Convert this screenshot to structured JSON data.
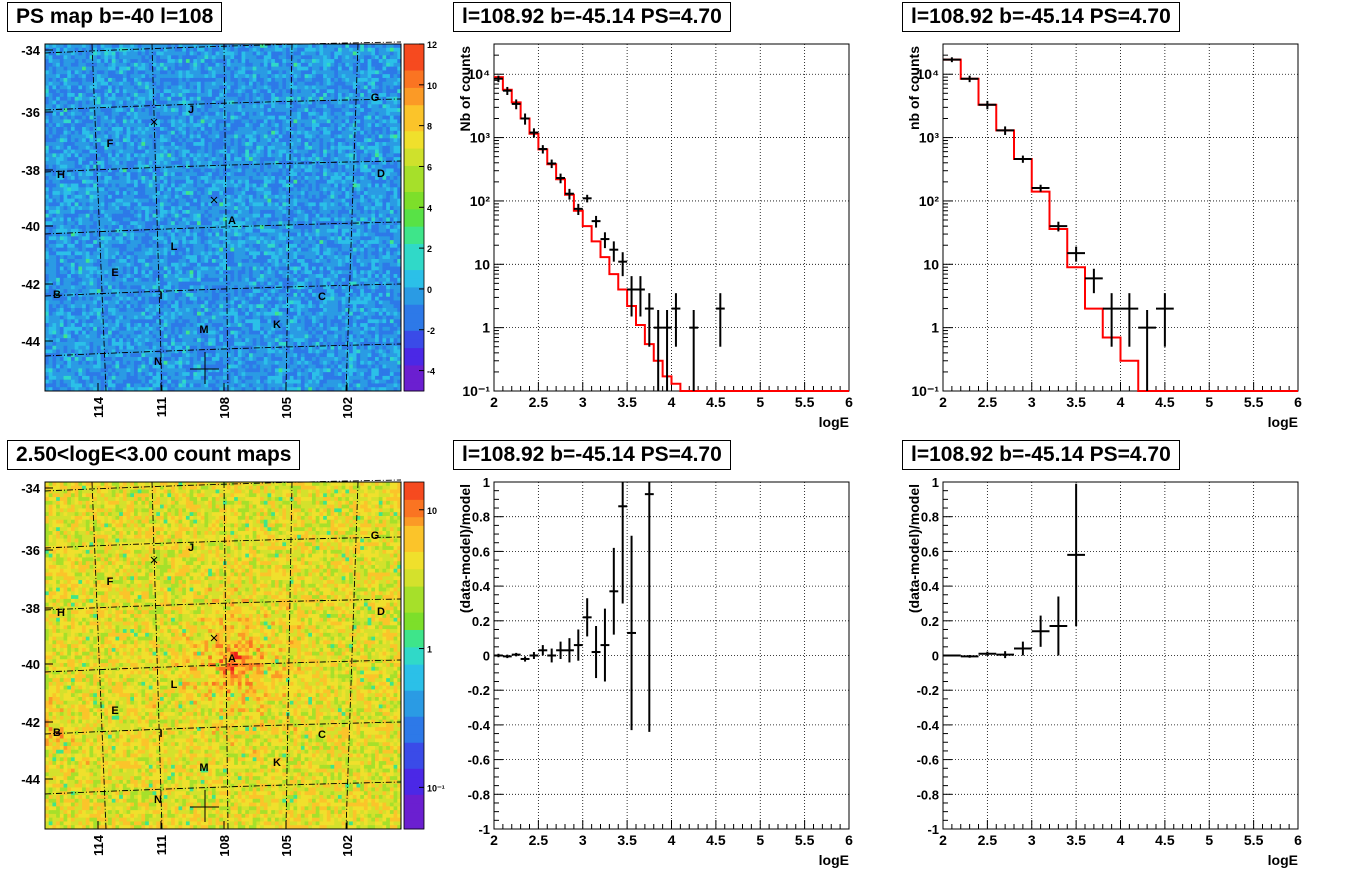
{
  "colors": {
    "data": "#000000",
    "model": "#ff0000",
    "grid": "#000000"
  },
  "maps": [
    {
      "title": "PS map b=-40 l=108",
      "kind": "psmap",
      "yticks": [
        "-34",
        "-36",
        "-38",
        "-40",
        "-42",
        "-44"
      ],
      "xticks": [
        "114",
        "111",
        "108",
        "105",
        "102"
      ],
      "colorbar_ticks": [
        "12",
        "10",
        "8",
        "6",
        "4",
        "2",
        "0",
        "-2",
        "-4"
      ],
      "colorbar_range": [
        -5,
        12
      ],
      "sources": [
        "A",
        "B",
        "C",
        "D",
        "E",
        "F",
        "G",
        "H",
        "I",
        "J",
        "K",
        "L",
        "M",
        "N"
      ]
    },
    {
      "title": "2.50<logE<3.00 count maps",
      "kind": "countmap",
      "yticks": [
        "-34",
        "-36",
        "-38",
        "-40",
        "-42",
        "-44"
      ],
      "xticks": [
        "114",
        "111",
        "108",
        "105",
        "102"
      ],
      "colorbar_ticks": [
        "10",
        "1",
        "10⁻¹"
      ],
      "colorbar_scale": "log",
      "sources": [
        "A",
        "B",
        "C",
        "D",
        "E",
        "F",
        "G",
        "H",
        "I",
        "J",
        "K",
        "L",
        "M",
        "N"
      ]
    }
  ],
  "chart_data": [
    {
      "type": "line",
      "title": "l=108.92 b=-45.14 PS=4.70",
      "xlabel": "logE",
      "ylabel": "Nb of counts",
      "xlim": [
        2,
        6
      ],
      "ylim": [
        0.1,
        30000
      ],
      "yscale": "log",
      "grid": true,
      "xticks": [
        "2",
        "2.5",
        "3",
        "3.5",
        "4",
        "4.5",
        "5",
        "5.5",
        "6"
      ],
      "yticks": [
        "10⁴",
        "10³",
        "10²",
        "10",
        "1",
        "10⁻¹"
      ],
      "model": {
        "name": "model",
        "edges": [
          2,
          2.1,
          2.2,
          2.3,
          2.4,
          2.5,
          2.6,
          2.7,
          2.8,
          2.9,
          3.0,
          3.1,
          3.2,
          3.3,
          3.4,
          3.5,
          3.6,
          3.7,
          3.8,
          3.9,
          4.0,
          4.1,
          4.2,
          4.3,
          6.0
        ],
        "values": [
          9000,
          5700,
          3600,
          2000,
          1150,
          650,
          380,
          220,
          125,
          70,
          40,
          23,
          13,
          7,
          4,
          2.2,
          1.1,
          0.55,
          0.3,
          0.17,
          0.13,
          0.1,
          0.1,
          0.1
        ]
      },
      "data": [
        {
          "x": 2.05,
          "y": 8500,
          "err": 1000,
          "xw": 0.05
        },
        {
          "x": 2.15,
          "y": 5500,
          "err": 800,
          "xw": 0.05
        },
        {
          "x": 2.25,
          "y": 3400,
          "err": 600,
          "xw": 0.05
        },
        {
          "x": 2.35,
          "y": 2000,
          "err": 400,
          "xw": 0.05
        },
        {
          "x": 2.45,
          "y": 1200,
          "err": 200,
          "xw": 0.05
        },
        {
          "x": 2.55,
          "y": 660,
          "err": 100,
          "xw": 0.05
        },
        {
          "x": 2.65,
          "y": 390,
          "err": 60,
          "xw": 0.05
        },
        {
          "x": 2.75,
          "y": 230,
          "err": 40,
          "xw": 0.05
        },
        {
          "x": 2.85,
          "y": 130,
          "err": 25,
          "xw": 0.05
        },
        {
          "x": 2.95,
          "y": 75,
          "err": 15,
          "xw": 0.05
        },
        {
          "x": 3.05,
          "y": 110,
          "err": 15,
          "xw": 0.05
        },
        {
          "x": 3.15,
          "y": 48,
          "err": 10,
          "xw": 0.05
        },
        {
          "x": 3.25,
          "y": 25,
          "err": 7,
          "xw": 0.05
        },
        {
          "x": 3.35,
          "y": 17,
          "err": 6,
          "xw": 0.05
        },
        {
          "x": 3.45,
          "y": 11,
          "err": 4.5,
          "xw": 0.05
        },
        {
          "x": 3.55,
          "y": 4,
          "err": 2.5,
          "xw": 0.05
        },
        {
          "x": 3.65,
          "y": 4,
          "err": 2.5,
          "xw": 0.05
        },
        {
          "x": 3.75,
          "y": 2,
          "err": 1.5,
          "xw": 0.05
        },
        {
          "x": 3.85,
          "y": 1,
          "err": 0.9,
          "xw": 0.05
        },
        {
          "x": 3.95,
          "y": 1,
          "err": 0.9,
          "xw": 0.05
        },
        {
          "x": 4.05,
          "y": 2,
          "err": 1.5,
          "xw": 0.05
        },
        {
          "x": 4.25,
          "y": 1,
          "err": 0.9,
          "xw": 0.05
        },
        {
          "x": 4.55,
          "y": 2,
          "err": 1.5,
          "xw": 0.05
        }
      ]
    },
    {
      "type": "line",
      "title": "l=108.92 b=-45.14 PS=4.70",
      "xlabel": "logE",
      "ylabel": "nb of counts",
      "xlim": [
        2,
        6
      ],
      "ylim": [
        0.1,
        30000
      ],
      "yscale": "log",
      "grid": true,
      "xticks": [
        "2",
        "2.5",
        "3",
        "3.5",
        "4",
        "4.5",
        "5",
        "5.5",
        "6"
      ],
      "yticks": [
        "10⁴",
        "10³",
        "10²",
        "10",
        "1",
        "10⁻¹"
      ],
      "model": {
        "name": "model",
        "edges": [
          2,
          2.2,
          2.4,
          2.6,
          2.8,
          3.0,
          3.2,
          3.4,
          3.6,
          3.8,
          4.0,
          4.2,
          6.0
        ],
        "values": [
          17000,
          8500,
          3300,
          1300,
          460,
          140,
          36,
          9,
          2,
          0.7,
          0.3,
          0.1
        ]
      },
      "data": [
        {
          "x": 2.1,
          "y": 17000,
          "err": 1500,
          "xw": 0.1
        },
        {
          "x": 2.3,
          "y": 8500,
          "err": 1000,
          "xw": 0.1
        },
        {
          "x": 2.5,
          "y": 3300,
          "err": 500,
          "xw": 0.1
        },
        {
          "x": 2.7,
          "y": 1300,
          "err": 200,
          "xw": 0.1
        },
        {
          "x": 2.9,
          "y": 460,
          "err": 60,
          "xw": 0.1
        },
        {
          "x": 3.1,
          "y": 160,
          "err": 20,
          "xw": 0.1
        },
        {
          "x": 3.3,
          "y": 40,
          "err": 7,
          "xw": 0.1
        },
        {
          "x": 3.5,
          "y": 15,
          "err": 4,
          "xw": 0.1
        },
        {
          "x": 3.7,
          "y": 6,
          "err": 2.5,
          "xw": 0.1
        },
        {
          "x": 3.9,
          "y": 2,
          "err": 1.5,
          "xw": 0.1
        },
        {
          "x": 4.1,
          "y": 2,
          "err": 1.5,
          "xw": 0.1
        },
        {
          "x": 4.3,
          "y": 1,
          "err": 0.9,
          "xw": 0.1
        },
        {
          "x": 4.5,
          "y": 2,
          "err": 1.5,
          "xw": 0.1
        }
      ]
    },
    {
      "type": "scatter",
      "title": "l=108.92 b=-45.14 PS=4.70",
      "xlabel": "logE",
      "ylabel": "(data-model)/model",
      "xlim": [
        2,
        6
      ],
      "ylim": [
        -1,
        1
      ],
      "yscale": "linear",
      "grid": true,
      "xticks": [
        "2",
        "2.5",
        "3",
        "3.5",
        "4",
        "4.5",
        "5",
        "5.5",
        "6"
      ],
      "yticks": [
        "1",
        "0.8",
        "0.6",
        "0.4",
        "0.2",
        "0",
        "-0.2",
        "-0.4",
        "-0.6",
        "-0.8",
        "-1"
      ],
      "data": [
        {
          "x": 2.05,
          "y": 0.0,
          "err": 0.01,
          "xw": 0.05
        },
        {
          "x": 2.15,
          "y": -0.005,
          "err": 0.01,
          "xw": 0.05
        },
        {
          "x": 2.25,
          "y": 0.005,
          "err": 0.01,
          "xw": 0.05
        },
        {
          "x": 2.35,
          "y": -0.02,
          "err": 0.015,
          "xw": 0.05
        },
        {
          "x": 2.45,
          "y": 0.0,
          "err": 0.02,
          "xw": 0.05
        },
        {
          "x": 2.55,
          "y": 0.03,
          "err": 0.03,
          "xw": 0.05
        },
        {
          "x": 2.65,
          "y": 0.0,
          "err": 0.04,
          "xw": 0.05
        },
        {
          "x": 2.75,
          "y": 0.03,
          "err": 0.05,
          "xw": 0.05
        },
        {
          "x": 2.85,
          "y": 0.03,
          "err": 0.07,
          "xw": 0.05
        },
        {
          "x": 2.95,
          "y": 0.06,
          "err": 0.09,
          "xw": 0.05
        },
        {
          "x": 3.05,
          "y": 0.22,
          "err": 0.11,
          "xw": 0.05
        },
        {
          "x": 3.15,
          "y": 0.02,
          "err": 0.15,
          "xw": 0.05
        },
        {
          "x": 3.25,
          "y": 0.06,
          "err": 0.21,
          "xw": 0.05
        },
        {
          "x": 3.35,
          "y": 0.37,
          "err": 0.25,
          "xw": 0.05
        },
        {
          "x": 3.45,
          "y": 0.86,
          "err": 0.56,
          "xw": 0.05
        },
        {
          "x": 3.55,
          "y": 0.13,
          "err": 0.56,
          "xw": 0.05
        },
        {
          "x": 3.75,
          "y": 0.93,
          "err": 1.37,
          "xw": 0.05
        }
      ]
    },
    {
      "type": "scatter",
      "title": "l=108.92 b=-45.14 PS=4.70",
      "xlabel": "logE",
      "ylabel": "(data-model)/model",
      "xlim": [
        2,
        6
      ],
      "ylim": [
        -1,
        1
      ],
      "yscale": "linear",
      "grid": true,
      "xticks": [
        "2",
        "2.5",
        "3",
        "3.5",
        "4",
        "4.5",
        "5",
        "5.5",
        "6"
      ],
      "yticks": [
        "1",
        "0.8",
        "0.6",
        "0.4",
        "0.2",
        "0",
        "-0.2",
        "-0.4",
        "-0.6",
        "-0.8",
        "-1"
      ],
      "data": [
        {
          "x": 2.1,
          "y": 0.0,
          "err": 0.005,
          "xw": 0.1
        },
        {
          "x": 2.3,
          "y": -0.005,
          "err": 0.008,
          "xw": 0.1
        },
        {
          "x": 2.5,
          "y": 0.01,
          "err": 0.012,
          "xw": 0.1
        },
        {
          "x": 2.7,
          "y": 0.005,
          "err": 0.02,
          "xw": 0.1
        },
        {
          "x": 2.9,
          "y": 0.04,
          "err": 0.04,
          "xw": 0.1
        },
        {
          "x": 3.1,
          "y": 0.14,
          "err": 0.09,
          "xw": 0.1
        },
        {
          "x": 3.3,
          "y": 0.17,
          "err": 0.17,
          "xw": 0.1
        },
        {
          "x": 3.5,
          "y": 0.58,
          "err": 0.41,
          "xw": 0.1
        }
      ]
    }
  ]
}
